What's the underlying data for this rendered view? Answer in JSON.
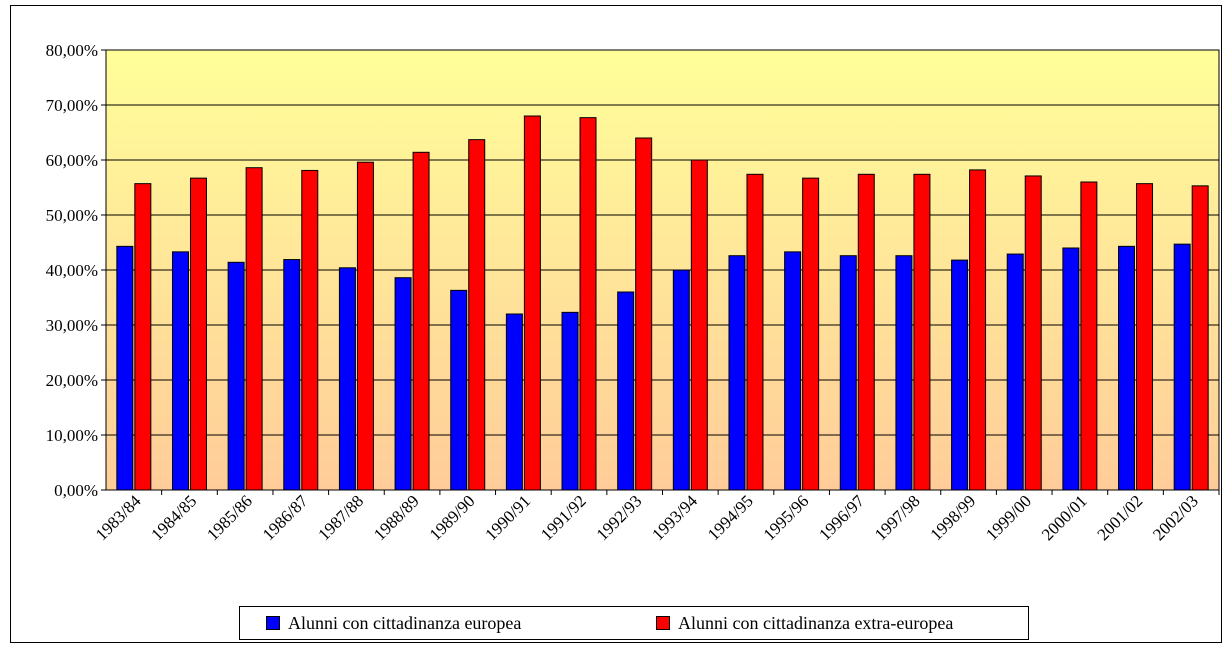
{
  "chart_data": {
    "type": "bar",
    "categories": [
      "1983/84",
      "1984/85",
      "1985/86",
      "1986/87",
      "1987/88",
      "1988/89",
      "1989/90",
      "1990/91",
      "1991/92",
      "1992/93",
      "1993/94",
      "1994/95",
      "1995/96",
      "1996/97",
      "1997/98",
      "1998/99",
      "1999/00",
      "2000/01",
      "2001/02",
      "2002/03"
    ],
    "series": [
      {
        "name": "Alunni con cittadinanza europea",
        "color": "#0000ff",
        "values": [
          44.3,
          43.3,
          41.4,
          41.9,
          40.4,
          38.6,
          36.3,
          32.0,
          32.3,
          36.0,
          40.0,
          42.6,
          43.3,
          42.6,
          42.6,
          41.8,
          42.9,
          44.0,
          44.3,
          44.7
        ]
      },
      {
        "name": "Alunni con cittadinanza extra-europea",
        "color": "#ff0000",
        "values": [
          55.7,
          56.7,
          58.6,
          58.1,
          59.6,
          61.4,
          63.7,
          68.0,
          67.7,
          64.0,
          60.0,
          57.4,
          56.7,
          57.4,
          57.4,
          58.2,
          57.1,
          56.0,
          55.7,
          55.3
        ]
      }
    ],
    "y_ticks": [
      "0,00%",
      "10,00%",
      "20,00%",
      "30,00%",
      "40,00%",
      "50,00%",
      "60,00%",
      "70,00%",
      "80,00%"
    ],
    "ylim": [
      0,
      80
    ],
    "grid": true,
    "legend_position": "bottom",
    "title": "",
    "xlabel": "",
    "ylabel": ""
  }
}
